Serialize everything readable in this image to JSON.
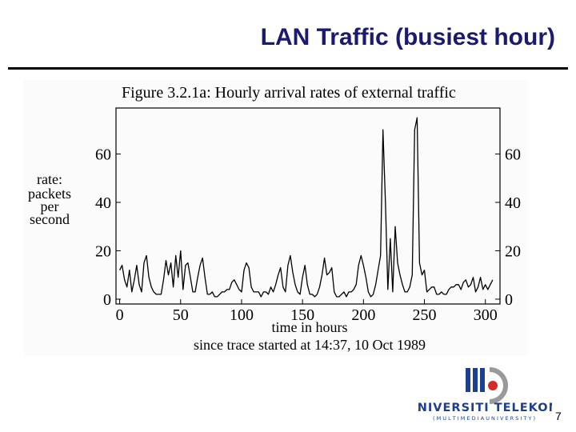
{
  "slide": {
    "title": "LAN Traffic (busiest hour)",
    "page_number": "7"
  },
  "logo": {
    "name": "UNIVERSITI TELEKOM",
    "tagline": "( M U L T I M E D I A   U N I V E R S I T Y )",
    "colors": {
      "blue": "#1d3f8f",
      "red": "#d42a2a",
      "gray": "#9a9a9a"
    }
  },
  "chart_data": {
    "type": "line",
    "title": "Figure 3.2.1a: Hourly arrival rates of external traffic",
    "xlabel": "time in hours",
    "xlabel_sub": "since trace started at 14:37, 10 Oct 1989",
    "ylabel": [
      "rate:",
      "packets",
      "per",
      "second"
    ],
    "xlim": [
      -3,
      312
    ],
    "ylim": [
      -2,
      79
    ],
    "x_ticks": [
      0,
      50,
      100,
      150,
      200,
      250,
      300
    ],
    "y_ticks": [
      0,
      20,
      40,
      60
    ],
    "grid": false,
    "series": [
      {
        "x": [
          0,
          2,
          4,
          6,
          8,
          10,
          12,
          14,
          16,
          18,
          20,
          22,
          24,
          26,
          28,
          30,
          32,
          34,
          36,
          38,
          40,
          42,
          44,
          46,
          48,
          50,
          52,
          54,
          56,
          58,
          60,
          62,
          64,
          66,
          68,
          70,
          72,
          74,
          76,
          78,
          80,
          82,
          84,
          86,
          88,
          90,
          92,
          94,
          96,
          98,
          100,
          102,
          104,
          106,
          108,
          110,
          112,
          114,
          116,
          118,
          120,
          122,
          124,
          126,
          128,
          130,
          132,
          134,
          136,
          138,
          140,
          142,
          144,
          146,
          148,
          150,
          152,
          154,
          156,
          158,
          160,
          162,
          164,
          166,
          168,
          170,
          172,
          174,
          176,
          178,
          180,
          182,
          184,
          186,
          188,
          190,
          192,
          194,
          196,
          198,
          200,
          202,
          204,
          206,
          208,
          210,
          212,
          214,
          216,
          218,
          220,
          222,
          224,
          226,
          228,
          230,
          232,
          234,
          236,
          238,
          240,
          242,
          244,
          246,
          248,
          250,
          252,
          254,
          256,
          258,
          260,
          262,
          264,
          266,
          268,
          270,
          272,
          274,
          276,
          278,
          280,
          282,
          284,
          286,
          288,
          290,
          292,
          294,
          296,
          298,
          300,
          302,
          304,
          306
        ],
        "y": [
          12,
          14,
          8,
          5,
          12,
          3,
          8,
          14,
          6,
          3,
          15,
          18,
          9,
          5,
          3,
          2,
          2,
          2,
          8,
          16,
          10,
          15,
          5,
          18,
          9,
          20,
          4,
          14,
          15,
          9,
          3,
          3,
          9,
          14,
          17,
          9,
          2,
          2,
          3,
          1,
          1,
          2,
          3,
          3,
          4,
          4,
          7,
          8,
          6,
          4,
          3,
          12,
          15,
          13,
          5,
          3,
          3,
          3,
          1,
          3,
          3,
          2,
          5,
          3,
          6,
          10,
          13,
          5,
          3,
          14,
          18,
          11,
          6,
          3,
          2,
          9,
          14,
          6,
          2,
          2,
          1,
          2,
          5,
          10,
          17,
          10,
          11,
          13,
          3,
          1,
          1,
          2,
          3,
          1,
          3,
          3,
          4,
          6,
          14,
          18,
          14,
          9,
          3,
          1,
          2,
          6,
          12,
          18,
          70,
          40,
          4,
          25,
          3,
          30,
          15,
          10,
          6,
          3,
          3,
          5,
          10,
          70,
          75,
          15,
          10,
          12,
          3,
          4,
          5,
          5,
          2,
          2,
          3,
          2,
          2,
          4,
          5,
          5,
          6,
          6,
          4,
          7,
          8,
          5,
          6,
          9,
          3,
          5,
          9,
          4,
          6,
          4,
          6,
          8
        ]
      }
    ]
  }
}
